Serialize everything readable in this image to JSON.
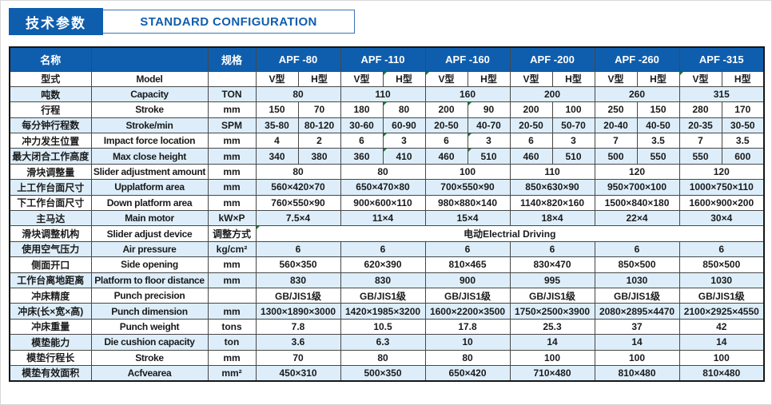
{
  "page": {
    "title_cn": "技术参数",
    "title_en": "STANDARD CONFIGURATION"
  },
  "colors": {
    "primary_blue": "#0f5eae",
    "row_alt_blue": "#ddeefa",
    "grid_border": "#474747",
    "marker_green": "#1d7a35"
  },
  "table": {
    "header": {
      "name_cn": "名称",
      "name_en": "",
      "spec": "规格"
    },
    "models": [
      "APF -80",
      "APF -110",
      "APF -160",
      "APF -200",
      "APF -260",
      "APF -315"
    ],
    "rows": [
      {
        "cn": "型式",
        "en": "Model",
        "unit": "",
        "type": "split",
        "values": [
          "V型",
          "H型",
          "V型",
          "H型",
          "V型",
          "H型",
          "V型",
          "H型",
          "V型",
          "H型",
          "V型",
          "H型"
        ],
        "markers": [
          3,
          4,
          10
        ]
      },
      {
        "cn": "吨数",
        "en": "Capacity",
        "unit": "TON",
        "type": "pairs",
        "values": [
          "80",
          "110",
          "160",
          "200",
          "260",
          "315"
        ]
      },
      {
        "cn": "行程",
        "en": "Stroke",
        "unit": "mm",
        "type": "split",
        "values": [
          "150",
          "70",
          "180",
          "80",
          "200",
          "90",
          "200",
          "100",
          "250",
          "150",
          "280",
          "170"
        ],
        "markers": [
          3,
          5
        ]
      },
      {
        "cn": "每分钟行程数",
        "en": "Stroke/min",
        "unit": "SPM",
        "type": "split",
        "values": [
          "35-80",
          "80-120",
          "30-60",
          "60-90",
          "20-50",
          "40-70",
          "20-50",
          "50-70",
          "20-40",
          "40-50",
          "20-35",
          "30-50"
        ]
      },
      {
        "cn": "冲力发生位置",
        "en": "Impact force location",
        "unit": "mm",
        "type": "split",
        "values": [
          "4",
          "2",
          "6",
          "3",
          "6",
          "3",
          "6",
          "3",
          "7",
          "3.5",
          "7",
          "3.5"
        ],
        "markers": [
          3,
          5
        ]
      },
      {
        "cn": "最大闭合工作高度",
        "en": "Max close height",
        "unit": "mm",
        "type": "split",
        "values": [
          "340",
          "380",
          "360",
          "410",
          "460",
          "510",
          "460",
          "510",
          "500",
          "550",
          "550",
          "600"
        ],
        "markers": [
          3,
          5
        ]
      },
      {
        "cn": "滑块调整量",
        "en": "Slider adjustment amount",
        "unit": "mm",
        "type": "pairs",
        "values": [
          "80",
          "80",
          "100",
          "110",
          "120",
          "120"
        ]
      },
      {
        "cn": "上工作台面尺寸",
        "en": "Upplatform area",
        "unit": "mm",
        "type": "pairs",
        "values": [
          "560×420×70",
          "650×470×80",
          "700×550×90",
          "850×630×90",
          "950×700×100",
          "1000×750×110"
        ]
      },
      {
        "cn": "下工作台面尺寸",
        "en": "Down platform area",
        "unit": "mm",
        "type": "pairs",
        "values": [
          "760×550×90",
          "900×600×110",
          "980×880×140",
          "1140×820×160",
          "1500×840×180",
          "1600×900×200"
        ]
      },
      {
        "cn": "主马达",
        "en": "Main  motor",
        "unit": "kW×P",
        "type": "pairs",
        "values": [
          "7.5×4",
          "11×4",
          "15×4",
          "18×4",
          "22×4",
          "30×4"
        ]
      },
      {
        "cn": "滑块调整机构",
        "en": "Slider adjust device",
        "unit": "调整方式",
        "type": "span",
        "values": [
          "电动Electrial Driving"
        ],
        "markers": [
          0
        ]
      },
      {
        "cn": "使用空气压力",
        "en": "Air pressure",
        "unit": "kg/cm²",
        "type": "pairs",
        "values": [
          "6",
          "6",
          "6",
          "6",
          "6",
          "6"
        ]
      },
      {
        "cn": "侧面开口",
        "en": "Side opening",
        "unit": "mm",
        "type": "pairs",
        "values": [
          "560×350",
          "620×390",
          "810×465",
          "830×470",
          "850×500",
          "850×500"
        ]
      },
      {
        "cn": "工作台离地距离",
        "en": "Platform to floor distance",
        "unit": "mm",
        "type": "pairs",
        "values": [
          "830",
          "830",
          "900",
          "995",
          "1030",
          "1030"
        ]
      },
      {
        "cn": "冲床精度",
        "en": "Punch precision",
        "unit": "",
        "type": "pairs",
        "values": [
          "GB/JIS1级",
          "GB/JIS1级",
          "GB/JIS1级",
          "GB/JIS1级",
          "GB/JIS1级",
          "GB/JIS1级"
        ]
      },
      {
        "cn": "冲床(长×宽×高)",
        "en": "Punch  dimension",
        "unit": "mm",
        "type": "pairs",
        "values": [
          "1300×1890×3000",
          "1420×1985×3200",
          "1600×2200×3500",
          "1750×2500×3900",
          "2080×2895×4470",
          "2100×2925×4550"
        ]
      },
      {
        "cn": "冲床重量",
        "en": "Punch  weight",
        "unit": "tons",
        "type": "pairs",
        "values": [
          "7.8",
          "10.5",
          "17.8",
          "25.3",
          "37",
          "42"
        ]
      },
      {
        "cn": "模垫能力",
        "en": "Die cushion capacity",
        "unit": "ton",
        "type": "pairs",
        "values": [
          "3.6",
          "6.3",
          "10",
          "14",
          "14",
          "14"
        ]
      },
      {
        "cn": "模垫行程长",
        "en": "Stroke",
        "unit": "mm",
        "type": "pairs",
        "values": [
          "70",
          "80",
          "80",
          "100",
          "100",
          "100"
        ]
      },
      {
        "cn": "模垫有效面积",
        "en": "Acfvearea",
        "unit": "mm²",
        "type": "pairs",
        "values": [
          "450×310",
          "500×350",
          "650×420",
          "710×480",
          "810×480",
          "810×480"
        ]
      }
    ]
  }
}
